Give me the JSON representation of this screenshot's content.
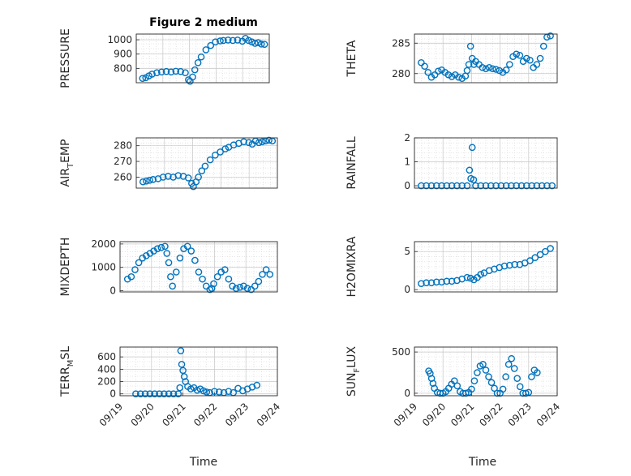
{
  "figure": {
    "title": "Figure 2 medium",
    "xlabel": "Time",
    "marker_color": "#0072BD"
  },
  "chart_data": [
    {
      "type": "scatter",
      "ylabel": "PRESSURE",
      "xlim": [
        "09/19",
        "09/24"
      ],
      "ylim": [
        700,
        1040
      ],
      "yticks": [
        800,
        900,
        1000
      ],
      "xticks": [],
      "x": [
        0.5,
        0.6,
        0.7,
        0.8,
        0.95,
        1.1,
        1.25,
        1.4,
        1.55,
        1.7,
        1.85,
        1.95,
        2.0,
        2.08,
        2.15,
        2.25,
        2.35,
        2.5,
        2.65,
        2.8,
        2.95,
        3.05,
        3.2,
        3.35,
        3.5,
        3.65,
        3.75,
        3.85,
        3.95,
        4.05,
        4.15,
        4.25,
        4.35
      ],
      "y": [
        730,
        735,
        748,
        760,
        770,
        775,
        778,
        775,
        780,
        778,
        770,
        720,
        710,
        740,
        790,
        840,
        880,
        930,
        960,
        985,
        992,
        995,
        998,
        995,
        998,
        990,
        1010,
        995,
        985,
        975,
        980,
        970,
        968
      ]
    },
    {
      "type": "scatter",
      "ylabel": "THETA",
      "xlim": [
        "09/19",
        "09/24"
      ],
      "ylim": [
        278.5,
        286.5
      ],
      "yticks": [
        280,
        285
      ],
      "xticks": [],
      "x": [
        0.5,
        0.6,
        0.7,
        0.8,
        0.9,
        1.0,
        1.1,
        1.2,
        1.3,
        1.4,
        1.5,
        1.6,
        1.7,
        1.8,
        1.85,
        1.9,
        1.95,
        2.0,
        2.05,
        2.1,
        2.2,
        2.3,
        2.4,
        2.5,
        2.6,
        2.7,
        2.8,
        2.9,
        3.0,
        3.1,
        3.2,
        3.3,
        3.4,
        3.5,
        3.6,
        3.7,
        3.8,
        3.9,
        4.0,
        4.1,
        4.2,
        4.3
      ],
      "y": [
        281.8,
        281.2,
        280.2,
        279.4,
        279.8,
        280.4,
        280.6,
        280.2,
        279.8,
        279.5,
        279.8,
        279.4,
        279.2,
        279.6,
        280.5,
        281.5,
        284.5,
        282.5,
        281.5,
        282.0,
        281.5,
        281.0,
        280.8,
        281.0,
        280.8,
        280.7,
        280.5,
        280.2,
        280.6,
        281.5,
        282.8,
        283.2,
        283.0,
        282.0,
        282.5,
        282.2,
        281.0,
        281.5,
        282.5,
        284.5,
        286.0,
        286.2
      ]
    },
    {
      "type": "scatter",
      "ylabel": "AIR_TEMP",
      "xlim": [
        "09/19",
        "09/24"
      ],
      "ylim": [
        253,
        285
      ],
      "yticks": [
        260,
        270,
        280
      ],
      "xticks": [],
      "x": [
        0.5,
        0.6,
        0.7,
        0.8,
        0.95,
        1.1,
        1.25,
        1.4,
        1.55,
        1.7,
        1.85,
        1.95,
        2.0,
        2.08,
        2.15,
        2.25,
        2.35,
        2.5,
        2.65,
        2.8,
        2.95,
        3.05,
        3.2,
        3.35,
        3.5,
        3.65,
        3.75,
        3.85,
        3.95,
        4.05,
        4.15,
        4.25,
        4.35
      ],
      "y": [
        257,
        257.5,
        258,
        258.5,
        259,
        260,
        260.5,
        260,
        261,
        260.5,
        259.5,
        256,
        254,
        257,
        260,
        264,
        267,
        271,
        274,
        276,
        278,
        279,
        280.5,
        281.5,
        282.5,
        282,
        281,
        283,
        282,
        282.5,
        283,
        283.5,
        283
      ],
      "tick_labels_note": "AIR_TEMP"
    },
    {
      "type": "scatter",
      "ylabel": "RAINFALL",
      "xlim": [
        "09/19",
        "09/24"
      ],
      "ylim": [
        -0.1,
        2.0
      ],
      "yticks": [
        0,
        1,
        2
      ],
      "xticks": [],
      "x": [
        0.5,
        0.65,
        0.8,
        0.95,
        1.1,
        1.25,
        1.4,
        1.55,
        1.7,
        1.85,
        1.92,
        1.96,
        2.0,
        2.04,
        2.1,
        2.25,
        2.4,
        2.55,
        2.7,
        2.85,
        3.0,
        3.15,
        3.3,
        3.45,
        3.6,
        3.75,
        3.9,
        4.05,
        4.2,
        4.35
      ],
      "y": [
        0,
        0,
        0,
        0,
        0,
        0,
        0,
        0,
        0,
        0,
        0.65,
        0.3,
        1.6,
        0.25,
        0,
        0,
        0,
        0,
        0,
        0,
        0,
        0,
        0,
        0,
        0,
        0,
        0,
        0,
        0,
        0
      ]
    },
    {
      "type": "scatter",
      "ylabel": "MIXDEPTH",
      "xlim": [
        "09/19",
        "09/24"
      ],
      "ylim": [
        -50,
        2100
      ],
      "yticks": [
        0,
        1000,
        2000
      ],
      "xticks": [],
      "x": [
        0.5,
        0.6,
        0.7,
        0.8,
        0.9,
        1.0,
        1.1,
        1.2,
        1.3,
        1.4,
        1.5,
        1.55,
        1.6,
        1.65,
        1.7,
        1.8,
        1.9,
        2.0,
        2.1,
        2.2,
        2.3,
        2.4,
        2.5,
        2.6,
        2.7,
        2.75,
        2.8,
        2.9,
        3.0,
        3.1,
        3.2,
        3.3,
        3.4,
        3.5,
        3.6,
        3.7,
        3.8,
        3.9,
        4.0,
        4.1,
        4.2,
        4.3
      ],
      "y": [
        500,
        600,
        900,
        1200,
        1400,
        1500,
        1600,
        1700,
        1800,
        1850,
        1900,
        1600,
        1200,
        600,
        200,
        800,
        1400,
        1800,
        1900,
        1700,
        1300,
        800,
        500,
        200,
        50,
        100,
        300,
        600,
        800,
        900,
        500,
        200,
        100,
        150,
        200,
        100,
        50,
        200,
        400,
        700,
        900,
        700
      ]
    },
    {
      "type": "scatter",
      "ylabel": "H2OMIXRA",
      "xlim": [
        "09/19",
        "09/24"
      ],
      "ylim": [
        -0.3,
        6.3
      ],
      "yticks": [
        0,
        5
      ],
      "xticks": [],
      "x": [
        0.5,
        0.65,
        0.8,
        0.95,
        1.1,
        1.25,
        1.4,
        1.55,
        1.7,
        1.85,
        1.95,
        2.05,
        2.15,
        2.25,
        2.35,
        2.5,
        2.65,
        2.8,
        2.95,
        3.1,
        3.25,
        3.4,
        3.55,
        3.7,
        3.85,
        4.0,
        4.15,
        4.3
      ],
      "y": [
        0.8,
        0.9,
        0.9,
        1.0,
        1.0,
        1.1,
        1.1,
        1.2,
        1.4,
        1.6,
        1.5,
        1.3,
        1.6,
        2.0,
        2.2,
        2.5,
        2.7,
        2.9,
        3.1,
        3.2,
        3.3,
        3.3,
        3.5,
        3.8,
        4.2,
        4.6,
        5.0,
        5.4
      ]
    },
    {
      "type": "scatter",
      "ylabel": "TERR_MSL",
      "xlim": [
        "09/19",
        "09/24"
      ],
      "ylim": [
        -30,
        760
      ],
      "yticks": [
        0,
        200,
        400,
        600
      ],
      "xticks": [
        "09/19",
        "09/20",
        "09/21",
        "09/22",
        "09/23",
        "09/24"
      ],
      "x": [
        0.5,
        0.65,
        0.8,
        0.95,
        1.1,
        1.25,
        1.4,
        1.55,
        1.7,
        1.85,
        1.9,
        1.93,
        1.96,
        2.0,
        2.04,
        2.08,
        2.15,
        2.25,
        2.35,
        2.45,
        2.55,
        2.65,
        2.75,
        2.85,
        3.0,
        3.15,
        3.3,
        3.45,
        3.6,
        3.75,
        3.9,
        4.05,
        4.2,
        4.35
      ],
      "y": [
        0,
        0,
        0,
        0,
        0,
        0,
        0,
        0,
        0,
        0,
        100,
        700,
        480,
        380,
        280,
        200,
        120,
        80,
        100,
        60,
        80,
        50,
        30,
        20,
        40,
        30,
        20,
        40,
        20,
        90,
        50,
        80,
        110,
        140
      ]
    },
    {
      "type": "scatter",
      "ylabel": "SUN_FLUX",
      "xlim": [
        "09/19",
        "09/24"
      ],
      "ylim": [
        -30,
        560
      ],
      "yticks": [
        0,
        500
      ],
      "xticks": [
        "09/19",
        "09/20",
        "09/21",
        "09/22",
        "09/23",
        "09/24"
      ],
      "x": [
        0.5,
        0.55,
        0.6,
        0.65,
        0.7,
        0.8,
        0.9,
        1.0,
        1.1,
        1.2,
        1.3,
        1.4,
        1.5,
        1.6,
        1.7,
        1.8,
        1.9,
        2.0,
        2.1,
        2.2,
        2.3,
        2.4,
        2.5,
        2.6,
        2.7,
        2.8,
        2.9,
        3.0,
        3.1,
        3.2,
        3.3,
        3.4,
        3.5,
        3.6,
        3.7,
        3.8,
        3.9,
        4.0,
        4.1,
        4.2,
        4.3
      ],
      "y": [
        270,
        240,
        180,
        120,
        60,
        10,
        0,
        0,
        20,
        60,
        110,
        150,
        90,
        20,
        0,
        0,
        10,
        50,
        150,
        250,
        330,
        350,
        280,
        200,
        130,
        60,
        0,
        0,
        50,
        200,
        350,
        420,
        300,
        180,
        80,
        0,
        0,
        10,
        200,
        280,
        250
      ]
    }
  ],
  "axis_labels": {
    "air_temp_main": "AIR",
    "air_temp_sub": "T",
    "air_temp_rest": "EMP",
    "terr_main": "TERR",
    "terr_sub": "M",
    "terr_rest": "SL",
    "sun_main": "SUN",
    "sun_sub": "F",
    "sun_rest": "LUX"
  }
}
